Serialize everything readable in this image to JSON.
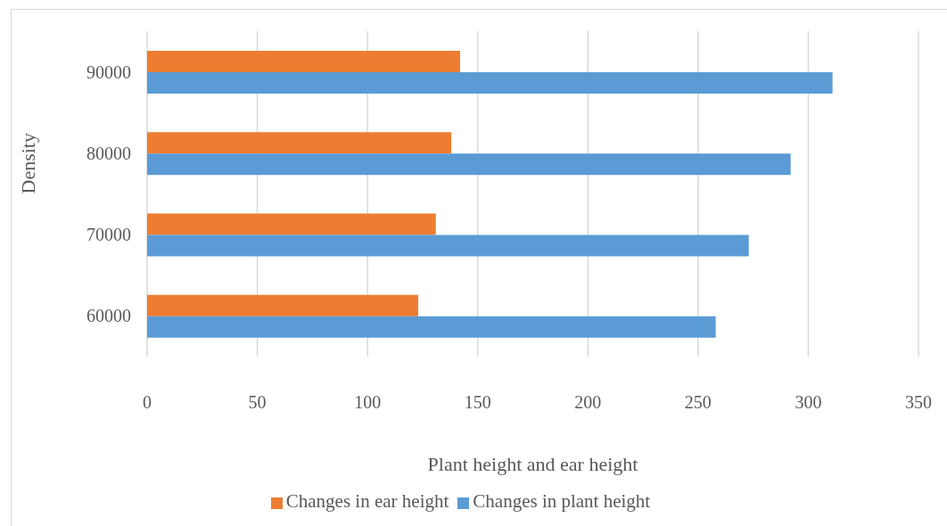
{
  "chart_data": {
    "type": "bar",
    "orientation": "horizontal",
    "xlabel": "Plant height and ear height",
    "ylabel": "Density",
    "categories": [
      "90000",
      "80000",
      "70000",
      "60000"
    ],
    "series": [
      {
        "name": "Changes in ear height",
        "color": "#ed7d31",
        "values": [
          142,
          138,
          131,
          123
        ]
      },
      {
        "name": "Changes in plant height",
        "color": "#5b9bd5",
        "values": [
          311,
          292,
          273,
          258
        ]
      }
    ],
    "xlim": [
      0,
      350
    ],
    "xticks": [
      0,
      50,
      100,
      150,
      200,
      250,
      300,
      350
    ],
    "grid": "x",
    "legend": "bottom"
  }
}
